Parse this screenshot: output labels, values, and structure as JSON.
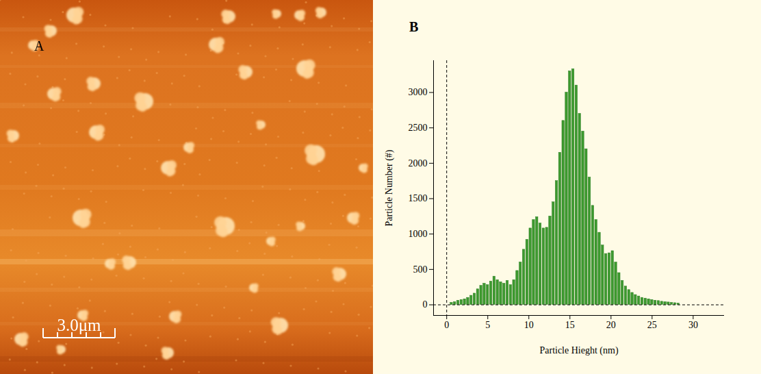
{
  "image_panel": {
    "panel_label": "A",
    "scale_bar": "3.0μm"
  },
  "chart_data": {
    "type": "histogram",
    "panel_label": "B",
    "x_label": "Particle Hieght (nm)",
    "y_label": "Particle Number (#)",
    "bins": [
      0.4,
      0.8,
      1.2,
      1.6,
      2,
      2.4,
      2.8,
      3.2,
      3.6,
      4,
      4.4,
      4.8,
      5.2,
      5.6,
      6,
      6.4,
      6.8,
      7.2,
      7.6,
      8,
      8.4,
      8.8,
      9.2,
      9.6,
      10,
      10.4,
      10.8,
      11.2,
      11.6,
      12,
      12.4,
      12.8,
      13.2,
      13.6,
      14,
      14.4,
      14.8,
      15.2,
      15.6,
      16,
      16.4,
      16.8,
      17.2,
      17.6,
      18,
      18.4,
      18.8,
      19.2,
      19.6,
      20,
      20.4,
      20.8,
      21.2,
      21.6,
      22,
      22.4,
      22.8,
      23.2,
      23.6,
      24,
      24.4,
      24.8,
      25.2,
      25.6,
      26,
      26.4,
      26.8,
      27.2,
      27.6,
      28,
      28.4
    ],
    "values": [
      30,
      40,
      60,
      70,
      80,
      100,
      130,
      160,
      220,
      270,
      300,
      280,
      330,
      400,
      350,
      320,
      300,
      340,
      280,
      350,
      480,
      600,
      780,
      920,
      1080,
      1200,
      1240,
      1150,
      1080,
      1090,
      1250,
      1450,
      1750,
      2150,
      2600,
      3000,
      3300,
      3330,
      3100,
      2700,
      2450,
      2200,
      1800,
      1400,
      1200,
      1020,
      840,
      720,
      730,
      760,
      600,
      450,
      340,
      260,
      210,
      170,
      140,
      120,
      100,
      90,
      80,
      70,
      60,
      55,
      45,
      40,
      35,
      30,
      25,
      20
    ],
    "color": "#3d9a2f",
    "xlim": [
      -1.6,
      33.8
    ],
    "ylim": [
      -150,
      3450
    ],
    "xticks": [
      0,
      5,
      10,
      15,
      20,
      25,
      30
    ],
    "yticks": [
      0,
      500,
      1000,
      1500,
      2000,
      2500,
      3000
    ]
  }
}
